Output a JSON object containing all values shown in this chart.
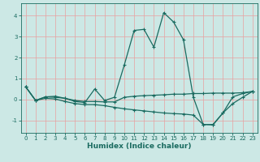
{
  "xlabel": "Humidex (Indice chaleur)",
  "ylabel": "",
  "bg_color": "#cce8e5",
  "line_color": "#1a6b60",
  "grid_color": "#e8a0a0",
  "xlim": [
    -0.5,
    23.5
  ],
  "ylim": [
    -1.6,
    4.6
  ],
  "xticks": [
    0,
    1,
    2,
    3,
    4,
    5,
    6,
    7,
    8,
    9,
    10,
    11,
    12,
    13,
    14,
    15,
    16,
    17,
    18,
    19,
    20,
    21,
    22,
    23
  ],
  "yticks": [
    -1,
    0,
    1,
    2,
    3,
    4
  ],
  "series": [
    {
      "x": [
        0,
        1,
        2,
        3,
        4,
        5,
        6,
        7,
        8,
        9,
        10,
        11,
        12,
        13,
        14,
        15,
        16,
        17,
        18,
        19,
        20,
        21,
        22,
        23
      ],
      "y": [
        0.6,
        -0.05,
        0.12,
        0.15,
        0.05,
        -0.1,
        -0.15,
        0.5,
        -0.05,
        0.1,
        1.65,
        3.3,
        3.35,
        2.5,
        4.15,
        3.7,
        2.85,
        0.1,
        -1.2,
        -1.2,
        -0.65,
        0.12,
        0.28,
        0.38
      ]
    },
    {
      "x": [
        0,
        1,
        2,
        3,
        4,
        5,
        6,
        7,
        8,
        9,
        10,
        11,
        12,
        13,
        14,
        15,
        16,
        17,
        18,
        19,
        20,
        21,
        22,
        23
      ],
      "y": [
        0.6,
        -0.05,
        0.12,
        0.1,
        0.05,
        -0.05,
        -0.1,
        -0.1,
        -0.12,
        -0.12,
        0.1,
        0.15,
        0.18,
        0.2,
        0.22,
        0.25,
        0.25,
        0.28,
        0.28,
        0.3,
        0.3,
        0.3,
        0.32,
        0.38
      ]
    },
    {
      "x": [
        0,
        1,
        2,
        3,
        4,
        5,
        6,
        7,
        8,
        9,
        10,
        11,
        12,
        13,
        14,
        15,
        16,
        17,
        18,
        19,
        20,
        21,
        22,
        23
      ],
      "y": [
        0.6,
        -0.05,
        0.05,
        0.02,
        -0.1,
        -0.2,
        -0.25,
        -0.25,
        -0.3,
        -0.38,
        -0.45,
        -0.5,
        -0.55,
        -0.6,
        -0.65,
        -0.68,
        -0.7,
        -0.75,
        -1.2,
        -1.22,
        -0.65,
        -0.2,
        0.1,
        0.38
      ]
    }
  ],
  "marker": "+",
  "marker_size": 3,
  "linewidth": 0.9,
  "axis_fontsize": 6.5,
  "tick_fontsize": 5.0
}
